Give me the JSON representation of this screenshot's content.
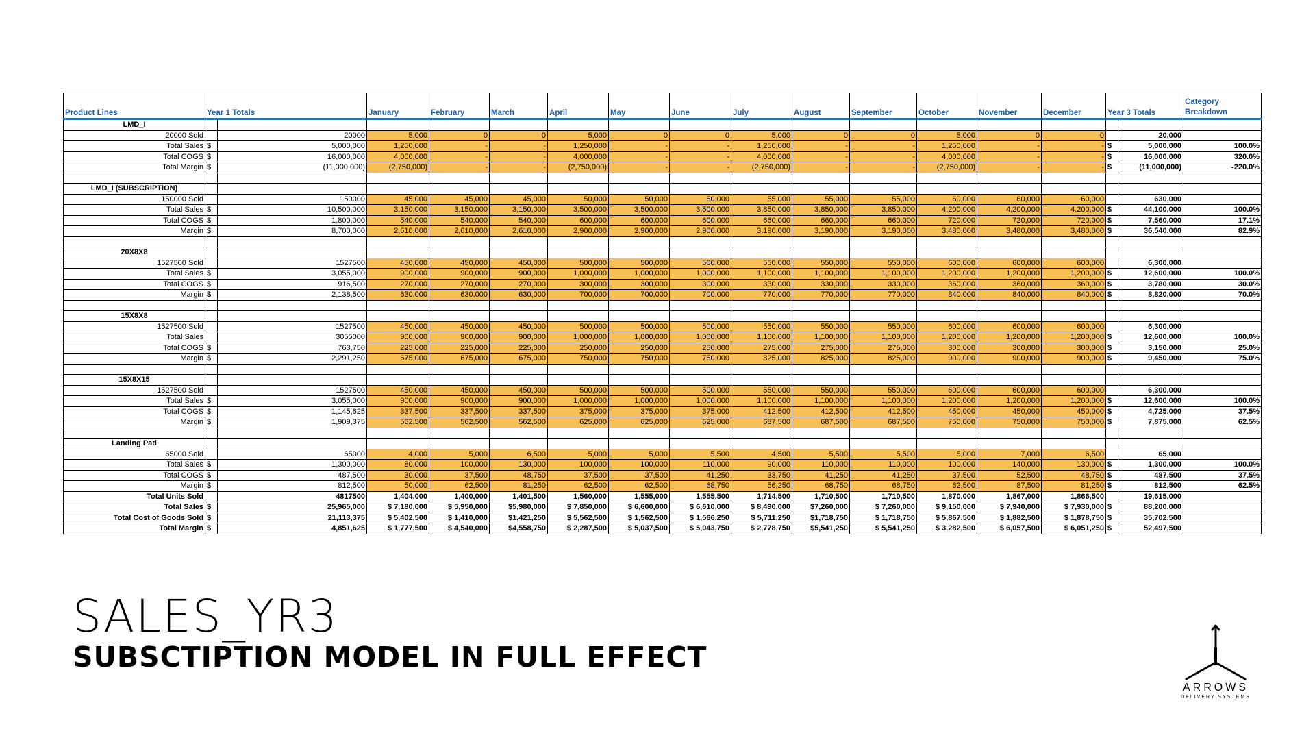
{
  "slide": {
    "title": "SALES_YR3",
    "subtitle": "SUBSCTIPTION MODEL IN FULL EFFECT"
  },
  "logo": {
    "name": "ARROWS",
    "tagline": "DELIVERY SYSTEMS",
    "icon": "tri-arrow-icon"
  },
  "colors": {
    "header_text": "#1f5ea8",
    "month_fill": "#f7bf55",
    "header_rule": "#2e75b6"
  },
  "headers": [
    "Product Lines",
    "Year 1 Totals",
    "January",
    "February",
    "March",
    "April",
    "May",
    "June",
    "July",
    "August",
    "September",
    "October",
    "November",
    "December",
    "Year 3 Totals",
    "Category Breakdown"
  ],
  "sections": [
    {
      "name": "LMD_I",
      "rows": [
        {
          "label": "20000 Sold",
          "cur": "",
          "y1": "20000",
          "months": [
            "5,000",
            "0",
            "0",
            "5,000",
            "0",
            "0",
            "5,000",
            "0",
            "0",
            "5,000",
            "0",
            "0"
          ],
          "y3cur": "",
          "y3": "20,000",
          "br": ""
        },
        {
          "label": "Total Sales",
          "cur": "$",
          "y1": "5,000,000",
          "months": [
            "1,250,000",
            "-",
            "-",
            "1,250,000",
            "-",
            "-",
            "1,250,000",
            "-",
            "-",
            "1,250,000",
            "-",
            "-"
          ],
          "y3cur": "$",
          "y3": "5,000,000",
          "br": "100.0%"
        },
        {
          "label": "Total COGS",
          "cur": "$",
          "y1": "16,000,000",
          "months": [
            "4,000,000",
            "-",
            "-",
            "4,000,000",
            "-",
            "-",
            "4,000,000",
            "-",
            "-",
            "4,000,000",
            "-",
            "-"
          ],
          "y3cur": "$",
          "y3": "16,000,000",
          "br": "320.0%"
        },
        {
          "label": "Total Margin",
          "cur": "$",
          "y1": "(11,000,000)",
          "months": [
            "(2,750,000)",
            "-",
            "-",
            "(2,750,000)",
            "-",
            "-",
            "(2,750,000)",
            "-",
            "-",
            "(2,750,000)",
            "-",
            "-"
          ],
          "y3cur": "$",
          "y3": "(11,000,000)",
          "br": "-220.0%"
        }
      ]
    },
    {
      "name": "LMD_I (SUBSCRIPTION)",
      "rows": [
        {
          "label": "150000 Sold",
          "cur": "",
          "y1": "150000",
          "months": [
            "45,000",
            "45,000",
            "45,000",
            "50,000",
            "50,000",
            "50,000",
            "55,000",
            "55,000",
            "55,000",
            "60,000",
            "60,000",
            "60,000"
          ],
          "y3cur": "",
          "y3": "630,000",
          "br": ""
        },
        {
          "label": "Total Sales",
          "cur": "$",
          "y1": "10,500,000",
          "months": [
            "3,150,000",
            "3,150,000",
            "3,150,000",
            "3,500,000",
            "3,500,000",
            "3,500,000",
            "3,850,000",
            "3,850,000",
            "3,850,000",
            "4,200,000",
            "4,200,000",
            "4,200,000"
          ],
          "y3cur": "$",
          "y3": "44,100,000",
          "br": "100.0%"
        },
        {
          "label": "Total COGS",
          "cur": "$",
          "y1": "1,800,000",
          "months": [
            "540,000",
            "540,000",
            "540,000",
            "600,000",
            "600,000",
            "600,000",
            "660,000",
            "660,000",
            "660,000",
            "720,000",
            "720,000",
            "720,000"
          ],
          "y3cur": "$",
          "y3": "7,560,000",
          "br": "17.1%"
        },
        {
          "label": "Margin",
          "cur": "$",
          "y1": "8,700,000",
          "months": [
            "2,610,000",
            "2,610,000",
            "2,610,000",
            "2,900,000",
            "2,900,000",
            "2,900,000",
            "3,190,000",
            "3,190,000",
            "3,190,000",
            "3,480,000",
            "3,480,000",
            "3,480,000"
          ],
          "y3cur": "$",
          "y3": "36,540,000",
          "br": "82.9%"
        }
      ]
    },
    {
      "name": "20X8X8",
      "rows": [
        {
          "label": "1527500 Sold",
          "cur": "",
          "y1": "1527500",
          "months": [
            "450,000",
            "450,000",
            "450,000",
            "500,000",
            "500,000",
            "500,000",
            "550,000",
            "550,000",
            "550,000",
            "600,000",
            "600,000",
            "600,000"
          ],
          "y3cur": "",
          "y3": "6,300,000",
          "br": ""
        },
        {
          "label": "Total Sales",
          "cur": "$",
          "y1": "3,055,000",
          "months": [
            "900,000",
            "900,000",
            "900,000",
            "1,000,000",
            "1,000,000",
            "1,000,000",
            "1,100,000",
            "1,100,000",
            "1,100,000",
            "1,200,000",
            "1,200,000",
            "1,200,000"
          ],
          "y3cur": "$",
          "y3": "12,600,000",
          "br": "100.0%"
        },
        {
          "label": "Total COGS",
          "cur": "$",
          "y1": "916,500",
          "months": [
            "270,000",
            "270,000",
            "270,000",
            "300,000",
            "300,000",
            "300,000",
            "330,000",
            "330,000",
            "330,000",
            "360,000",
            "360,000",
            "360,000"
          ],
          "y3cur": "$",
          "y3": "3,780,000",
          "br": "30.0%"
        },
        {
          "label": "Margin",
          "cur": "$",
          "y1": "2,138,500",
          "months": [
            "630,000",
            "630,000",
            "630,000",
            "700,000",
            "700,000",
            "700,000",
            "770,000",
            "770,000",
            "770,000",
            "840,000",
            "840,000",
            "840,000"
          ],
          "y3cur": "$",
          "y3": "8,820,000",
          "br": "70.0%"
        }
      ]
    },
    {
      "name": "15X8X8",
      "rows": [
        {
          "label": "1527500 Sold",
          "cur": "",
          "y1": "1527500",
          "months": [
            "450,000",
            "450,000",
            "450,000",
            "500,000",
            "500,000",
            "500,000",
            "550,000",
            "550,000",
            "550,000",
            "600,000",
            "600,000",
            "600,000"
          ],
          "y3cur": "",
          "y3": "6,300,000",
          "br": ""
        },
        {
          "label": "Total Sales",
          "cur": "",
          "y1": "3055000",
          "months": [
            "900,000",
            "900,000",
            "900,000",
            "1,000,000",
            "1,000,000",
            "1,000,000",
            "1,100,000",
            "1,100,000",
            "1,100,000",
            "1,200,000",
            "1,200,000",
            "1,200,000"
          ],
          "y3cur": "$",
          "y3": "12,600,000",
          "br": "100.0%"
        },
        {
          "label": "Total COGS",
          "cur": "$",
          "y1": "763,750",
          "months": [
            "225,000",
            "225,000",
            "225,000",
            "250,000",
            "250,000",
            "250,000",
            "275,000",
            "275,000",
            "275,000",
            "300,000",
            "300,000",
            "300,000"
          ],
          "y3cur": "$",
          "y3": "3,150,000",
          "br": "25.0%"
        },
        {
          "label": "Margin",
          "cur": "$",
          "y1": "2,291,250",
          "months": [
            "675,000",
            "675,000",
            "675,000",
            "750,000",
            "750,000",
            "750,000",
            "825,000",
            "825,000",
            "825,000",
            "900,000",
            "900,000",
            "900,000"
          ],
          "y3cur": "$",
          "y3": "9,450,000",
          "br": "75.0%"
        }
      ]
    },
    {
      "name": "15X8X15",
      "rows": [
        {
          "label": "1527500 Sold",
          "cur": "",
          "y1": "1527500",
          "months": [
            "450,000",
            "450,000",
            "450,000",
            "500,000",
            "500,000",
            "500,000",
            "550,000",
            "550,000",
            "550,000",
            "600,000",
            "600,000",
            "600,000"
          ],
          "y3cur": "",
          "y3": "6,300,000",
          "br": ""
        },
        {
          "label": "Total Sales",
          "cur": "$",
          "y1": "3,055,000",
          "months": [
            "900,000",
            "900,000",
            "900,000",
            "1,000,000",
            "1,000,000",
            "1,000,000",
            "1,100,000",
            "1,100,000",
            "1,100,000",
            "1,200,000",
            "1,200,000",
            "1,200,000"
          ],
          "y3cur": "$",
          "y3": "12,600,000",
          "br": "100.0%"
        },
        {
          "label": "Total COGS",
          "cur": "$",
          "y1": "1,145,625",
          "months": [
            "337,500",
            "337,500",
            "337,500",
            "375,000",
            "375,000",
            "375,000",
            "412,500",
            "412,500",
            "412,500",
            "450,000",
            "450,000",
            "450,000"
          ],
          "y3cur": "$",
          "y3": "4,725,000",
          "br": "37.5%"
        },
        {
          "label": "Margin",
          "cur": "$",
          "y1": "1,909,375",
          "months": [
            "562,500",
            "562,500",
            "562,500",
            "625,000",
            "625,000",
            "625,000",
            "687,500",
            "687,500",
            "687,500",
            "750,000",
            "750,000",
            "750,000"
          ],
          "y3cur": "$",
          "y3": "7,875,000",
          "br": "62.5%"
        }
      ]
    },
    {
      "name": "Landing Pad",
      "rows": [
        {
          "label": "65000 Sold",
          "cur": "",
          "y1": "65000",
          "months": [
            "4,000",
            "5,000",
            "6,500",
            "5,000",
            "5,000",
            "5,500",
            "4,500",
            "5,500",
            "5,500",
            "5,000",
            "7,000",
            "6,500"
          ],
          "y3cur": "",
          "y3": "65,000",
          "br": ""
        },
        {
          "label": "Total Sales",
          "cur": "$",
          "y1": "1,300,000",
          "months": [
            "80,000",
            "100,000",
            "130,000",
            "100,000",
            "100,000",
            "110,000",
            "90,000",
            "110,000",
            "110,000",
            "100,000",
            "140,000",
            "130,000"
          ],
          "y3cur": "$",
          "y3": "1,300,000",
          "br": "100.0%"
        },
        {
          "label": "Total COGS",
          "cur": "$",
          "y1": "487,500",
          "months": [
            "30,000",
            "37,500",
            "48,750",
            "37,500",
            "37,500",
            "41,250",
            "33,750",
            "41,250",
            "41,250",
            "37,500",
            "52,500",
            "48,750"
          ],
          "y3cur": "$",
          "y3": "487,500",
          "br": "37.5%"
        },
        {
          "label": "Margin",
          "cur": "$",
          "y1": "812,500",
          "months": [
            "50,000",
            "62,500",
            "81,250",
            "62,500",
            "62,500",
            "68,750",
            "56,250",
            "68,750",
            "68,750",
            "62,500",
            "87,500",
            "81,250"
          ],
          "y3cur": "$",
          "y3": "812,500",
          "br": "62.5%"
        }
      ]
    }
  ],
  "totals": [
    {
      "label": "Total Units Sold",
      "cur": "",
      "y1": "4817500",
      "months": [
        "1,404,000",
        "1,400,000",
        "1,401,500",
        "1,560,000",
        "1,555,000",
        "1,555,500",
        "1,714,500",
        "1,710,500",
        "1,710,500",
        "1,870,000",
        "1,867,000",
        "1,866,500"
      ],
      "y3cur": "",
      "y3": "19,615,000"
    },
    {
      "label": "Total Sales",
      "cur": "$",
      "y1": "25,965,000",
      "months": [
        "$ 7,180,000",
        "$ 5,950,000",
        "$5,980,000",
        "$ 7,850,000",
        "$ 6,600,000",
        "$ 6,610,000",
        "$ 8,490,000",
        "$7,260,000",
        "$ 7,260,000",
        "$ 9,150,000",
        "$ 7,940,000",
        "$ 7,930,000"
      ],
      "y3cur": "$",
      "y3": "88,200,000"
    },
    {
      "label": "Total Cost of Goods Sold",
      "cur": "$",
      "y1": "21,113,375",
      "months": [
        "$ 5,402,500",
        "$ 1,410,000",
        "$1,421,250",
        "$ 5,562,500",
        "$ 1,562,500",
        "$ 1,566,250",
        "$ 5,711,250",
        "$1,718,750",
        "$ 1,718,750",
        "$ 5,867,500",
        "$ 1,882,500",
        "$ 1,878,750"
      ],
      "y3cur": "$",
      "y3": "35,702,500"
    },
    {
      "label": "Total Margin",
      "cur": "$",
      "y1": "4,851,625",
      "months": [
        "$ 1,777,500",
        "$ 4,540,000",
        "$4,558,750",
        "$ 2,287,500",
        "$ 5,037,500",
        "$ 5,043,750",
        "$ 2,778,750",
        "$5,541,250",
        "$ 5,541,250",
        "$ 3,282,500",
        "$ 6,057,500",
        "$ 6,051,250"
      ],
      "y3cur": "$",
      "y3": "52,497,500"
    }
  ]
}
